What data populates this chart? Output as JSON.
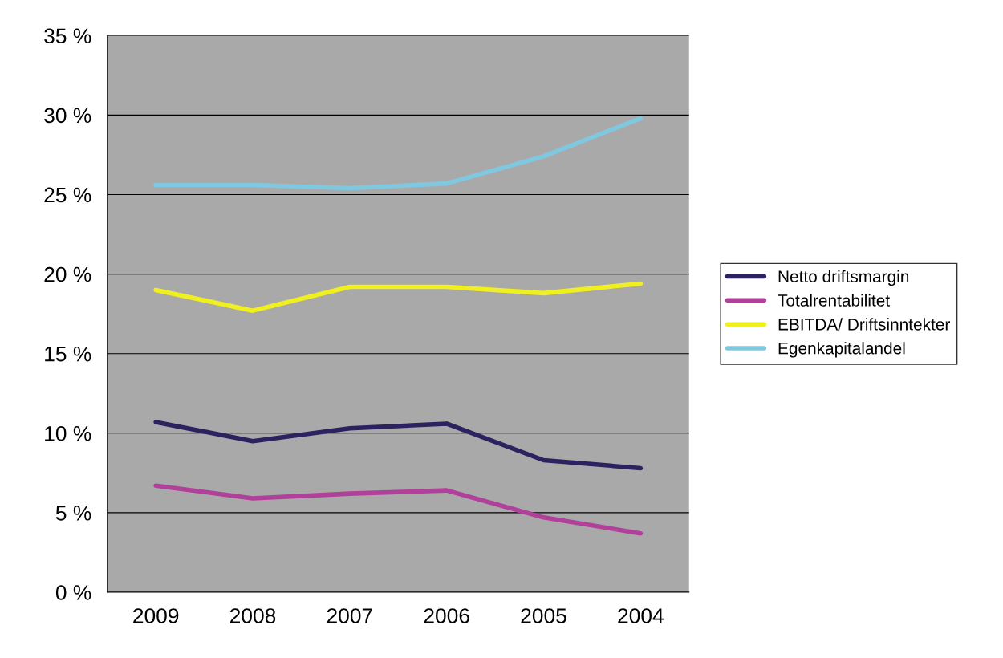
{
  "chart_data": {
    "type": "line",
    "categories": [
      "2009",
      "2008",
      "2007",
      "2006",
      "2005",
      "2004"
    ],
    "series": [
      {
        "name": "Netto driftsmargin",
        "color": "#2b2260",
        "values": [
          10.7,
          9.5,
          10.3,
          10.6,
          8.3,
          7.8
        ]
      },
      {
        "name": "Totalrentabilitet",
        "color": "#b0409a",
        "values": [
          6.7,
          5.9,
          6.2,
          6.4,
          4.7,
          3.7
        ]
      },
      {
        "name": "EBITDA/ Driftsinntekter",
        "color": "#f0f020",
        "values": [
          19.0,
          17.7,
          19.2,
          19.2,
          18.8,
          19.4
        ]
      },
      {
        "name": "Egenkapitalandel",
        "color": "#80c8e0",
        "values": [
          25.6,
          25.6,
          25.4,
          25.7,
          27.4,
          29.8
        ]
      }
    ],
    "ylim": [
      0,
      35
    ],
    "yticks": [
      {
        "value": 0,
        "label": "0 %"
      },
      {
        "value": 5,
        "label": "5 %"
      },
      {
        "value": 10,
        "label": "10 %"
      },
      {
        "value": 15,
        "label": "15 %"
      },
      {
        "value": 20,
        "label": "20 %"
      },
      {
        "value": 25,
        "label": "25 %"
      },
      {
        "value": 30,
        "label": "30 %"
      },
      {
        "value": 35,
        "label": "35 %"
      }
    ],
    "grid": "y",
    "legend": "right",
    "marker": "none",
    "line_style": "solid"
  }
}
